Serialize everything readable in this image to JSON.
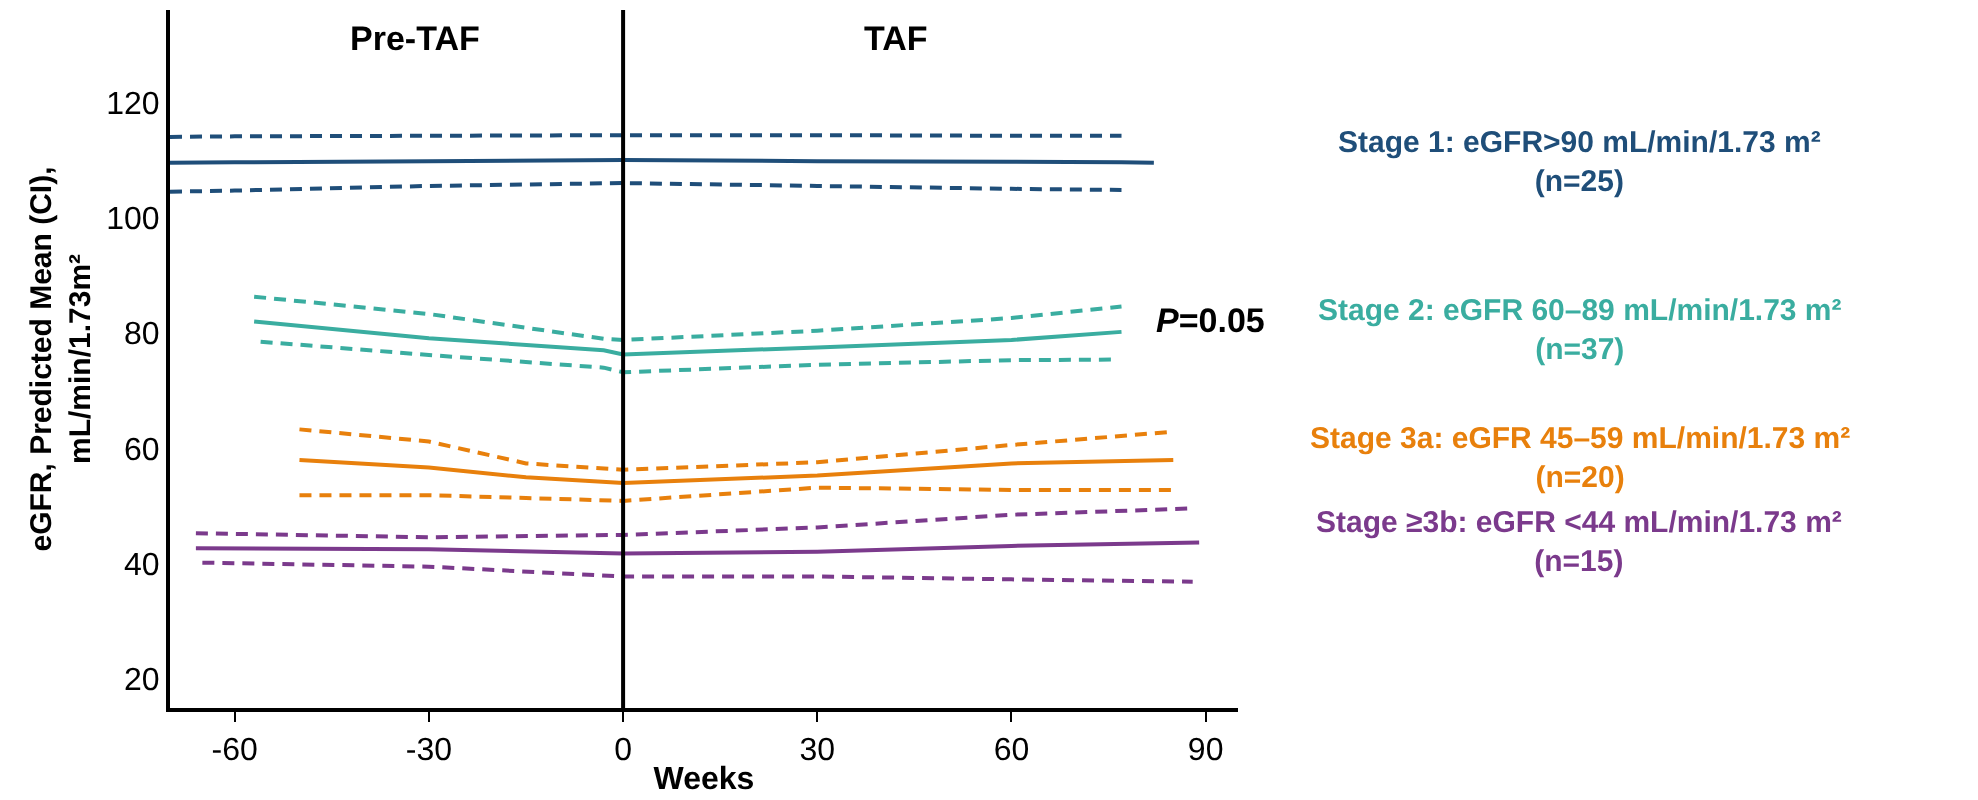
{
  "chart_data": {
    "type": "line",
    "xlabel": "Weeks",
    "ylabel": "eGFR, Predicted Mean (CI),\nmL/min/1.73m²",
    "xlim": [
      -70,
      95
    ],
    "xticks": [
      -60,
      -30,
      0,
      30,
      60,
      90
    ],
    "ylim": [
      15,
      136
    ],
    "yticks": [
      20,
      40,
      60,
      80,
      100,
      120
    ],
    "grid": false,
    "legend": false,
    "marker": "none",
    "line_style": "solid",
    "ref_lines": [
      {
        "axis": "x",
        "value": 0,
        "color": "#000000"
      }
    ],
    "annotations": [
      "Pre-TAF",
      "TAF",
      "P=0.05"
    ],
    "series": [
      {
        "name": "Stage 1: eGFR>90 mL/min/1.73 m²\n(n=25)",
        "color": "#1f4e79",
        "x": [
          -70,
          -60,
          -30,
          0,
          30,
          60,
          77,
          82
        ],
        "values": [
          109.5,
          109.6,
          109.8,
          110,
          109.8,
          109.7,
          109.6,
          109.5
        ]
      },
      {
        "color": "#1f4e79",
        "line_style": "dashed",
        "x": [
          -70,
          -60,
          -30,
          0,
          30,
          60,
          77
        ],
        "values": [
          114,
          114.1,
          114.2,
          114.3,
          114.3,
          114.2,
          114.2
        ]
      },
      {
        "color": "#1f4e79",
        "line_style": "dashed",
        "x": [
          -70,
          -60,
          -30,
          0,
          30,
          60,
          77
        ],
        "values": [
          104.5,
          104.7,
          105.5,
          106,
          105.5,
          105,
          104.8
        ]
      },
      {
        "name": "Stage 2: eGFR 60–89 mL/min/1.73 m²\n(n=37)",
        "color": "#3aada0",
        "x": [
          -57,
          -30,
          -3,
          0,
          30,
          60,
          77
        ],
        "values": [
          82,
          79.1,
          77,
          76.3,
          77.5,
          78.8,
          80.2
        ]
      },
      {
        "color": "#3aada0",
        "line_style": "dashed",
        "x": [
          -57,
          -30,
          -3,
          0,
          30,
          60,
          77
        ],
        "values": [
          86.3,
          83.3,
          79,
          78.8,
          80.4,
          82.6,
          84.6
        ]
      },
      {
        "color": "#3aada0",
        "line_style": "dashed",
        "x": [
          -56,
          -30,
          -3,
          0,
          30,
          60,
          76
        ],
        "values": [
          78.5,
          76.2,
          74,
          73.2,
          74.5,
          75.3,
          75.4
        ]
      },
      {
        "name": "Stage 3a: eGFR 45–59 mL/min/1.73 m²\n(n=20)",
        "color": "#e8800c",
        "x": [
          -50,
          -30,
          -15,
          0,
          30,
          60,
          85
        ],
        "values": [
          58,
          56.7,
          55,
          54,
          55.3,
          57.4,
          58
        ]
      },
      {
        "color": "#e8800c",
        "line_style": "dashed",
        "x": [
          -50,
          -30,
          -15,
          0,
          30,
          60,
          85
        ],
        "values": [
          63.3,
          61.2,
          57.4,
          56.3,
          57.6,
          60.6,
          62.9
        ]
      },
      {
        "color": "#e8800c",
        "line_style": "dashed",
        "x": [
          -50,
          -30,
          -15,
          0,
          30,
          60,
          85
        ],
        "values": [
          51.9,
          51.9,
          51.4,
          50.9,
          53.2,
          52.8,
          52.8
        ]
      },
      {
        "name": "Stage ≥3b: eGFR <44 mL/min/1.73 m²\n(n=15)",
        "color": "#7b3a8c",
        "x": [
          -66,
          -30,
          0,
          30,
          60,
          89
        ],
        "values": [
          42.7,
          42.5,
          41.8,
          42.1,
          43.1,
          43.7
        ]
      },
      {
        "color": "#7b3a8c",
        "line_style": "dashed",
        "x": [
          -66,
          -30,
          0,
          30,
          60,
          88
        ],
        "values": [
          45.3,
          44.6,
          45,
          46.3,
          48.5,
          49.6
        ]
      },
      {
        "color": "#7b3a8c",
        "line_style": "dashed",
        "x": [
          -65,
          -30,
          0,
          30,
          60,
          88
        ],
        "values": [
          40.2,
          39.5,
          37.8,
          37.8,
          37.3,
          36.9
        ]
      }
    ]
  }
}
